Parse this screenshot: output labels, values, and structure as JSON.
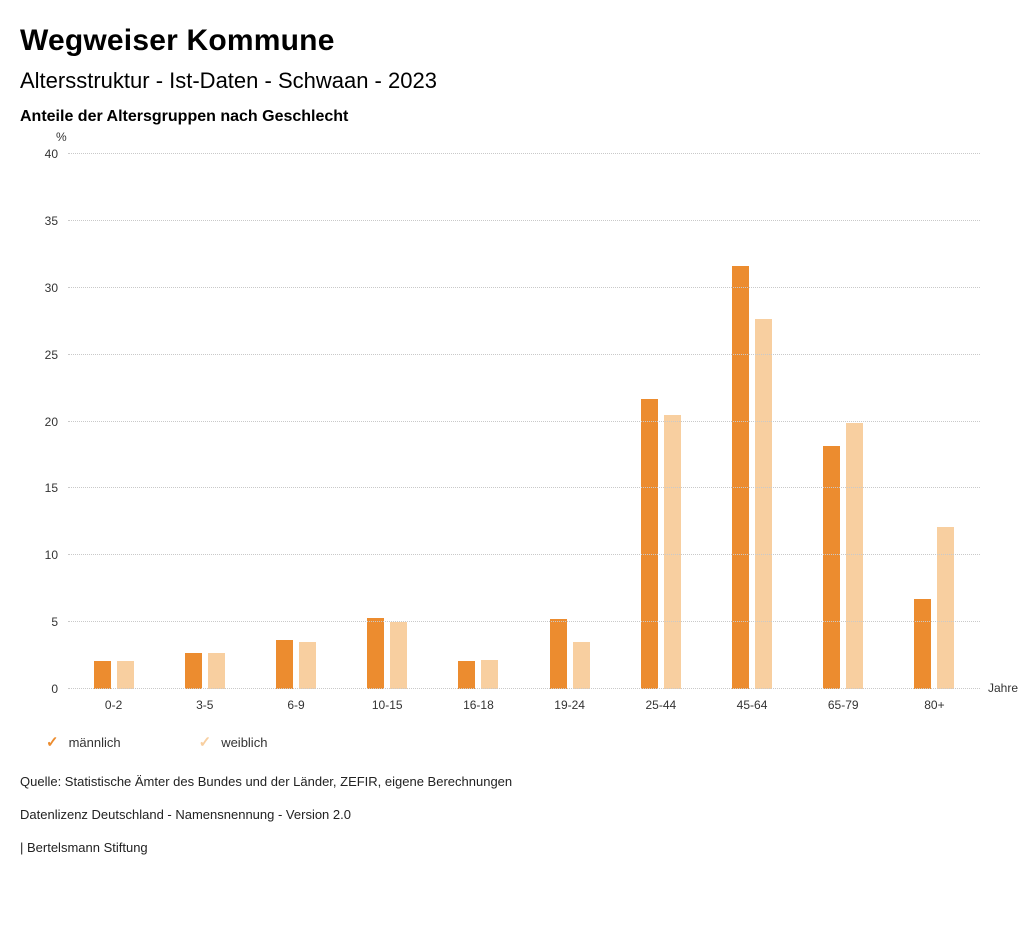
{
  "header": {
    "title": "Wegweiser Kommune",
    "subtitle": "Altersstruktur - Ist-Daten - Schwaan - 2023",
    "heading": "Anteile der Altersgruppen nach Geschlecht"
  },
  "chart_data": {
    "type": "bar",
    "title": "Anteile der Altersgruppen nach Geschlecht",
    "categories": [
      "0-2",
      "3-5",
      "6-9",
      "10-15",
      "16-18",
      "19-24",
      "25-44",
      "45-64",
      "65-79",
      "80+"
    ],
    "series": [
      {
        "name": "männlich",
        "color": "#EC8C2F",
        "values": [
          2.1,
          2.7,
          3.7,
          5.3,
          2.1,
          5.2,
          21.7,
          31.6,
          18.2,
          6.7
        ]
      },
      {
        "name": "weiblich",
        "color": "#F8CFA0",
        "values": [
          2.1,
          2.7,
          3.5,
          5.0,
          2.2,
          3.5,
          20.5,
          27.7,
          19.9,
          12.1
        ]
      }
    ],
    "ylabel": "%",
    "xlabel": "Jahre",
    "ylim": [
      0,
      40
    ],
    "ytick_step": 5,
    "grid": true,
    "legend_position": "bottom"
  },
  "legend": {
    "items": [
      {
        "label": "männlich",
        "color": "#EC8C2F",
        "check_icon": "✓"
      },
      {
        "label": "weiblich",
        "color": "#F8CFA0",
        "check_icon": "✓"
      }
    ]
  },
  "footer": {
    "source": "Quelle: Statistische Ämter des Bundes und der Länder, ZEFIR, eigene Berechnungen",
    "license": "Datenlizenz Deutschland - Namensnennung - Version 2.0",
    "attribution": "| Bertelsmann Stiftung"
  }
}
